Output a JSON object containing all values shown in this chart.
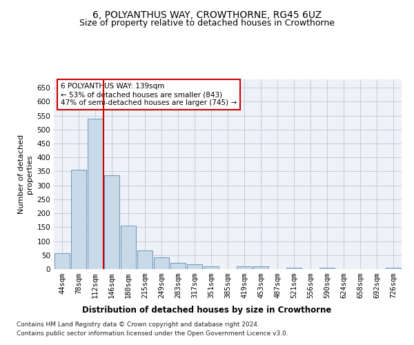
{
  "title": "6, POLYANTHUS WAY, CROWTHORNE, RG45 6UZ",
  "subtitle": "Size of property relative to detached houses in Crowthorne",
  "xlabel": "Distribution of detached houses by size in Crowthorne",
  "ylabel": "Number of detached\nproperties",
  "categories": [
    "44sqm",
    "78sqm",
    "112sqm",
    "146sqm",
    "180sqm",
    "215sqm",
    "249sqm",
    "283sqm",
    "317sqm",
    "351sqm",
    "385sqm",
    "419sqm",
    "453sqm",
    "487sqm",
    "521sqm",
    "556sqm",
    "590sqm",
    "624sqm",
    "658sqm",
    "692sqm",
    "726sqm"
  ],
  "values": [
    58,
    355,
    540,
    337,
    155,
    68,
    42,
    23,
    17,
    10,
    0,
    9,
    9,
    0,
    4,
    0,
    4,
    0,
    0,
    0,
    4
  ],
  "bar_color": "#c8d9e8",
  "bar_edge_color": "#5a8ab0",
  "grid_color": "#c8c8d4",
  "background_color": "#ffffff",
  "plot_bg_color": "#eef2f8",
  "vline_color": "#cc0000",
  "annotation_box_text": "6 POLYANTHUS WAY: 139sqm\n← 53% of detached houses are smaller (843)\n47% of semi-detached houses are larger (745) →",
  "ylim": [
    0,
    680
  ],
  "yticks": [
    0,
    50,
    100,
    150,
    200,
    250,
    300,
    350,
    400,
    450,
    500,
    550,
    600,
    650
  ],
  "footer_line1": "Contains HM Land Registry data © Crown copyright and database right 2024.",
  "footer_line2": "Contains public sector information licensed under the Open Government Licence v3.0.",
  "title_fontsize": 10,
  "subtitle_fontsize": 9,
  "xlabel_fontsize": 8.5,
  "ylabel_fontsize": 8,
  "tick_fontsize": 7.5,
  "annotation_fontsize": 7.5,
  "footer_fontsize": 6.5
}
